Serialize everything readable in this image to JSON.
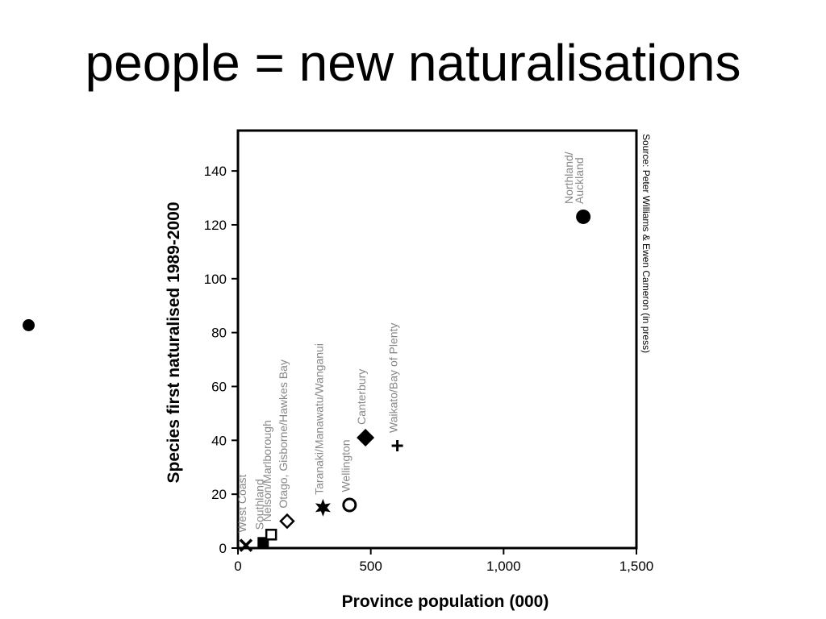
{
  "slide": {
    "title": "people = new naturalisations"
  },
  "chart_data": {
    "type": "scatter",
    "xlabel": "Province population (000)",
    "ylabel": "Species first naturalised 1989-2000",
    "xlim": [
      0,
      1500
    ],
    "ylim": [
      0,
      155
    ],
    "xticks": [
      0,
      500,
      1000,
      1500
    ],
    "xtick_labels": [
      "0",
      "500",
      "1,000",
      "1,500"
    ],
    "yticks": [
      0,
      20,
      40,
      60,
      80,
      100,
      120,
      140
    ],
    "ytick_labels": [
      "0",
      "20",
      "40",
      "60",
      "80",
      "100",
      "120",
      "140"
    ],
    "grid": false,
    "source": "Source: Peter Williams & Ewen Cameron (in press)",
    "points": [
      {
        "label": "West Coast",
        "x": 30,
        "y": 1,
        "marker": "x"
      },
      {
        "label": "Southland",
        "x": 95,
        "y": 2,
        "marker": "square-filled"
      },
      {
        "label": "Nelson/Marlborough",
        "x": 125,
        "y": 5,
        "marker": "square-open"
      },
      {
        "label": "Otago, Gisborne/Hawkes Bay",
        "x": 185,
        "y": 10,
        "marker": "diamond-open"
      },
      {
        "label": "Taranaki/Manawatu/Wanganui",
        "x": 320,
        "y": 15,
        "marker": "star"
      },
      {
        "label": "Wellington",
        "x": 420,
        "y": 16,
        "marker": "circle-open"
      },
      {
        "label": "Canterbury",
        "x": 480,
        "y": 41,
        "marker": "diamond-filled"
      },
      {
        "label": "Waikato/Bay of Plenty",
        "x": 600,
        "y": 38,
        "marker": "plus"
      },
      {
        "label": "Northland/ Auckland",
        "label_lines": [
          "Northland/",
          "Auckland"
        ],
        "x": 1300,
        "y": 123,
        "marker": "circle-filled"
      }
    ]
  }
}
